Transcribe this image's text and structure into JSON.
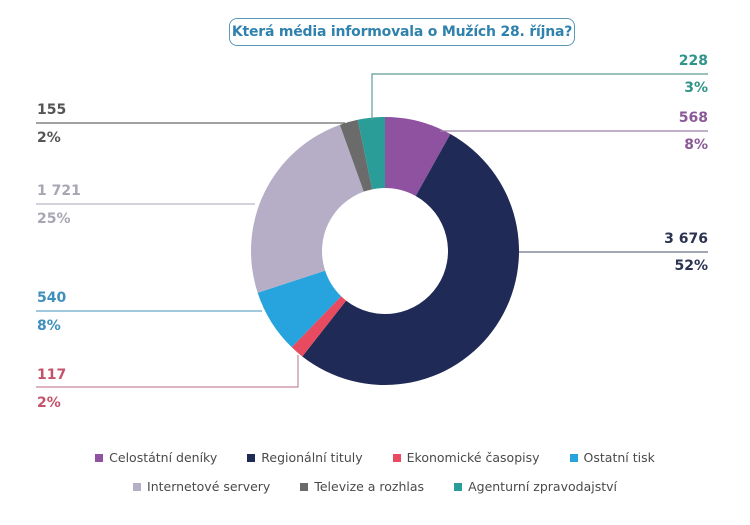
{
  "title": "Která média informovala o Mužích 28. října?",
  "chart_data": {
    "type": "pie",
    "variant": "donut",
    "title": "Která média informovala o Mužích 28. října?",
    "categories": [
      "Celostátní deníky",
      "Regionální tituly",
      "Ekonomické časopisy",
      "Ostatní tisk",
      "Internetové servery",
      "Televize a rozhlas",
      "Agenturní zpravodajství"
    ],
    "values": [
      568,
      3676,
      117,
      540,
      1721,
      155,
      228
    ],
    "percent_labels": [
      "8%",
      "52%",
      "2%",
      "8%",
      "25%",
      "2%",
      "3%"
    ],
    "value_labels": [
      "568",
      "3 676",
      "117",
      "540",
      "1 721",
      "155",
      "228"
    ],
    "colors": [
      "#8e52a1",
      "#1f2a56",
      "#e84a5f",
      "#27a3dd",
      "#b5aec6",
      "#6b6b6b",
      "#2a9d99"
    ],
    "label_colors": [
      "#8a5a97",
      "#2c3350",
      "#c4526a",
      "#3f8fbd",
      "#a9a6b3",
      "#555555",
      "#2f9489"
    ],
    "legend_position": "bottom",
    "start_angle_deg": 0,
    "direction": "clockwise"
  },
  "labels": {
    "agentura": {
      "value": "228",
      "pct": "3%"
    },
    "celostatni": {
      "value": "568",
      "pct": "8%"
    },
    "regionalni": {
      "value": "3 676",
      "pct": "52%"
    },
    "televize": {
      "value": "155",
      "pct": "2%"
    },
    "internet": {
      "value": "1 721",
      "pct": "25%"
    },
    "ostatni": {
      "value": "540",
      "pct": "8%"
    },
    "ekonomicke": {
      "value": "117",
      "pct": "2%"
    }
  },
  "legend": [
    {
      "label": "Celostátní deníky",
      "color": "#8e52a1"
    },
    {
      "label": "Regionální tituly",
      "color": "#1f2a56"
    },
    {
      "label": "Ekonomické časopisy",
      "color": "#e84a5f"
    },
    {
      "label": "Ostatní tisk",
      "color": "#27a3dd"
    },
    {
      "label": "Internetové servery",
      "color": "#b5aec6"
    },
    {
      "label": "Televize a rozhlas",
      "color": "#6b6b6b"
    },
    {
      "label": "Agenturní zpravodajství",
      "color": "#2a9d99"
    }
  ]
}
